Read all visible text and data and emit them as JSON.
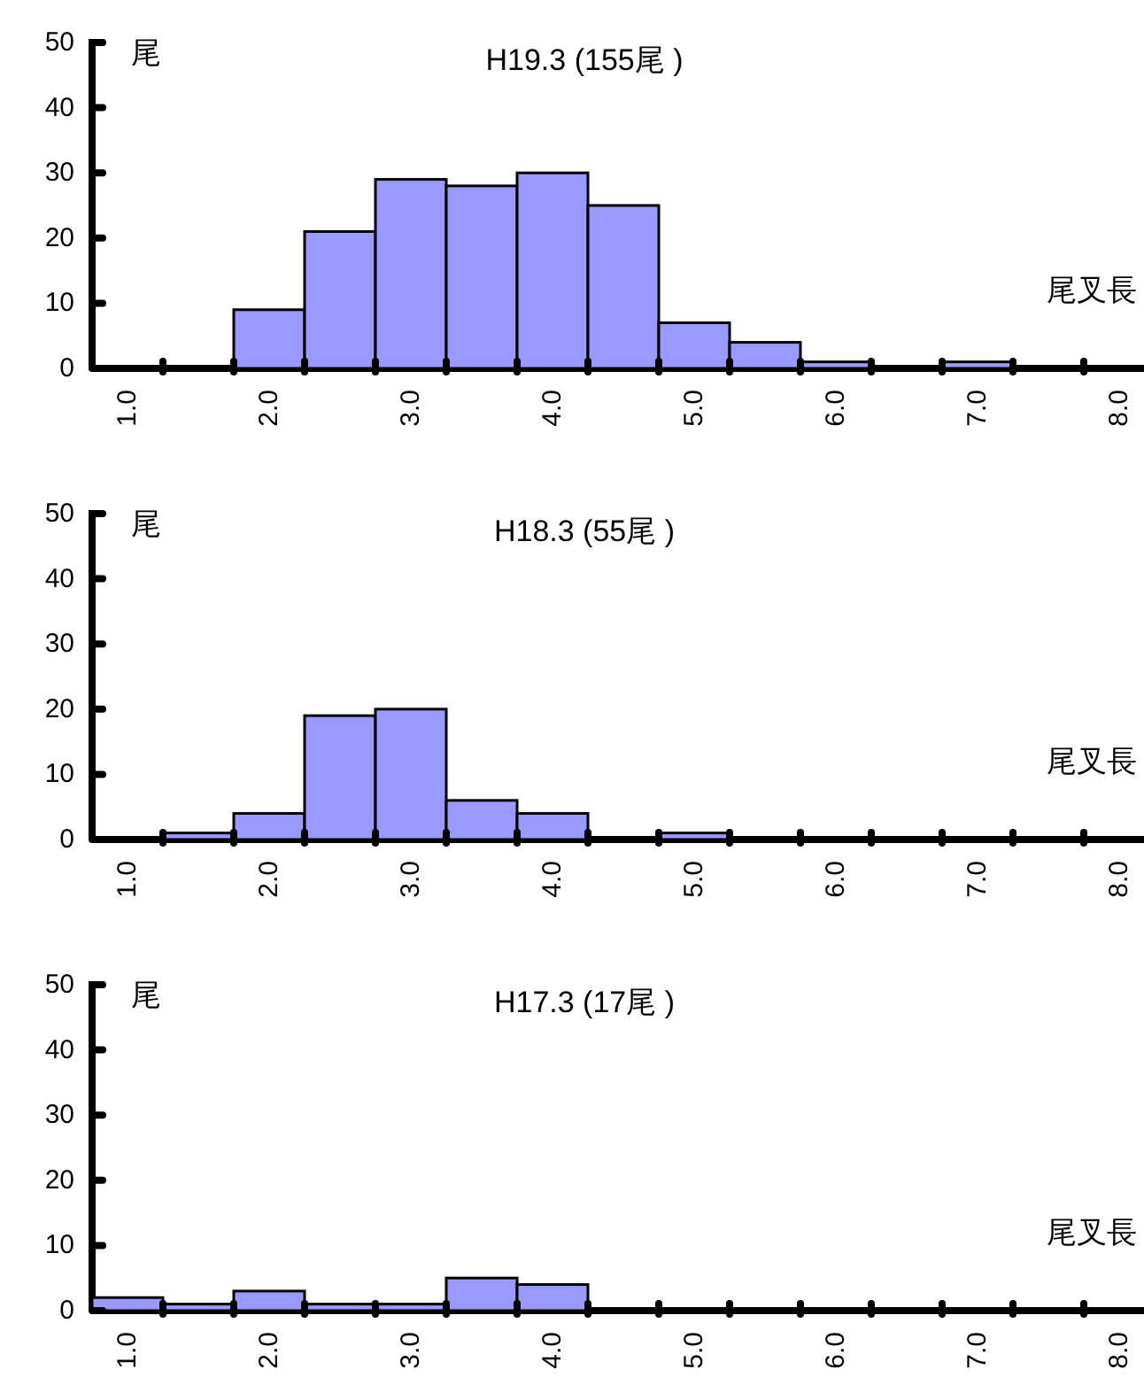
{
  "chart_data": [
    {
      "type": "bar",
      "title": "H19.3 (155尾 )",
      "ylabel": "尾",
      "xlabel": "尾叉長",
      "categories": [
        "1.0",
        null,
        "2.0",
        null,
        "3.0",
        null,
        "4.0",
        null,
        "5.0",
        null,
        "6.0",
        null,
        "7.0",
        null,
        "8.0"
      ],
      "values": [
        0,
        0,
        9,
        21,
        29,
        28,
        30,
        25,
        7,
        4,
        1,
        0,
        1,
        0,
        0
      ],
      "color": "#9999ff",
      "ylim": [
        0,
        50
      ],
      "yticks": [
        0,
        10,
        20,
        30,
        40,
        50
      ]
    },
    {
      "type": "bar",
      "title": "H18.3 (55尾 )",
      "ylabel": "尾",
      "xlabel": "尾叉長",
      "categories": [
        "1.0",
        null,
        "2.0",
        null,
        "3.0",
        null,
        "4.0",
        null,
        "5.0",
        null,
        "6.0",
        null,
        "7.0",
        null,
        "8.0"
      ],
      "values": [
        0,
        1,
        4,
        19,
        20,
        6,
        4,
        0,
        1,
        0,
        0,
        0,
        0,
        0,
        0
      ],
      "color": "#9999ff",
      "ylim": [
        0,
        50
      ],
      "yticks": [
        0,
        10,
        20,
        30,
        40,
        50
      ]
    },
    {
      "type": "bar",
      "title": "H17.3 (17尾 )",
      "ylabel": "尾",
      "xlabel": "尾叉長",
      "categories": [
        "1.0",
        null,
        "2.0",
        null,
        "3.0",
        null,
        "4.0",
        null,
        "5.0",
        null,
        "6.0",
        null,
        "7.0",
        null,
        "8.0"
      ],
      "values": [
        2,
        1,
        3,
        1,
        1,
        5,
        4,
        0,
        0,
        0,
        0,
        0,
        0,
        0,
        0
      ],
      "color": "#9999ff",
      "ylim": [
        0,
        50
      ],
      "yticks": [
        0,
        10,
        20,
        30,
        40,
        50
      ]
    }
  ]
}
